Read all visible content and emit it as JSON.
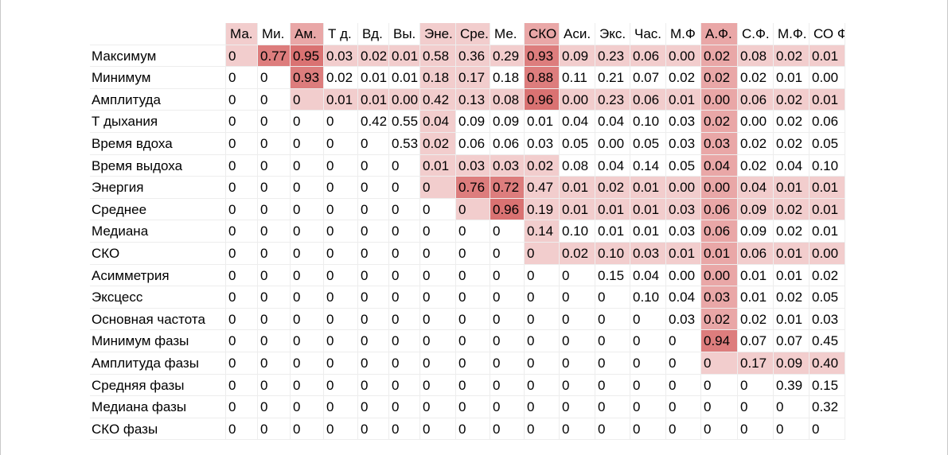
{
  "columns": [
    "Ма.",
    "Ми.",
    "Ам.",
    "Т д.",
    "Вд.",
    "Вы.",
    "Эне.",
    "Сре.",
    "Ме.",
    "СКО",
    "Аси.",
    "Экс.",
    "Час.",
    "М.Ф",
    "А.Ф.",
    "С.Ф.",
    "М.Ф.",
    "СО Ф"
  ],
  "column_highlight": [
    "#f2cdcd",
    null,
    "#e9a7a7",
    null,
    null,
    null,
    "#f2cdcd",
    "#f2cdcd",
    null,
    "#e9a7a7",
    null,
    null,
    null,
    null,
    "#e9a7a7",
    null,
    null,
    null
  ],
  "rows": [
    {
      "label": "Максимум",
      "values": [
        "0",
        "0.77",
        "0.95",
        "0.03",
        "0.02",
        "0.01",
        "0.58",
        "0.36",
        "0.29",
        "0.93",
        "0.09",
        "0.23",
        "0.06",
        "0.00",
        "0.02",
        "0.08",
        "0.02",
        "0.01"
      ],
      "fills": [
        "#f2cdcd",
        "#dd7d7d",
        "#da7272",
        "#f2cdcd",
        "#f2cdcd",
        "#f2cdcd",
        "#f2cdcd",
        "#f2cdcd",
        "#f2cdcd",
        "#dd7d7d",
        "#f2cdcd",
        "#f2cdcd",
        "#f2cdcd",
        "#f2cdcd",
        "#e9a7a7",
        "#f2cdcd",
        "#f2cdcd",
        "#f2cdcd"
      ]
    },
    {
      "label": "Минимум",
      "values": [
        "0",
        "0",
        "0.93",
        "0.02",
        "0.01",
        "0.01",
        "0.18",
        "0.17",
        "0.18",
        "0.88",
        "0.11",
        "0.21",
        "0.07",
        "0.02",
        "0.02",
        "0.02",
        "0.01",
        "0.00"
      ],
      "fills": [
        null,
        null,
        "#dd7d7d",
        null,
        null,
        null,
        "#f2cdcd",
        "#f2cdcd",
        null,
        "#dd7d7d",
        null,
        null,
        null,
        null,
        "#e9a7a7",
        null,
        null,
        null
      ]
    },
    {
      "label": "Амплитуда",
      "values": [
        "0",
        "0",
        "0",
        "0.01",
        "0.01",
        "0.00",
        "0.42",
        "0.13",
        "0.08",
        "0.96",
        "0.00",
        "0.23",
        "0.06",
        "0.01",
        "0.00",
        "0.06",
        "0.02",
        "0.01"
      ],
      "fills": [
        null,
        null,
        "#f2cdcd",
        "#f2cdcd",
        "#f2cdcd",
        "#f2cdcd",
        "#f2cdcd",
        "#f2cdcd",
        "#f2cdcd",
        "#da7272",
        "#f2cdcd",
        "#f2cdcd",
        "#f2cdcd",
        "#f2cdcd",
        "#e9a7a7",
        "#f2cdcd",
        "#f2cdcd",
        "#f2cdcd"
      ]
    },
    {
      "label": "Т дыхания",
      "values": [
        "0",
        "0",
        "0",
        "0",
        "0.42",
        "0.55",
        "0.04",
        "0.09",
        "0.09",
        "0.01",
        "0.04",
        "0.04",
        "0.10",
        "0.03",
        "0.02",
        "0.00",
        "0.02",
        "0.06"
      ],
      "fills": [
        null,
        null,
        null,
        null,
        null,
        null,
        "#f2cdcd",
        null,
        null,
        null,
        null,
        null,
        null,
        null,
        "#e9a7a7",
        null,
        null,
        null
      ]
    },
    {
      "label": "Время вдоха",
      "values": [
        "0",
        "0",
        "0",
        "0",
        "0",
        "0.53",
        "0.02",
        "0.06",
        "0.06",
        "0.03",
        "0.05",
        "0.00",
        "0.05",
        "0.03",
        "0.03",
        "0.02",
        "0.02",
        "0.05"
      ],
      "fills": [
        null,
        null,
        null,
        null,
        null,
        null,
        "#f2cdcd",
        null,
        null,
        null,
        null,
        null,
        null,
        null,
        "#e9a7a7",
        null,
        null,
        null
      ]
    },
    {
      "label": "Время выдоха",
      "values": [
        "0",
        "0",
        "0",
        "0",
        "0",
        "0",
        "0.01",
        "0.03",
        "0.03",
        "0.02",
        "0.08",
        "0.04",
        "0.14",
        "0.05",
        "0.04",
        "0.02",
        "0.04",
        "0.10"
      ],
      "fills": [
        null,
        null,
        null,
        null,
        null,
        null,
        "#f2cdcd",
        "#f2cdcd",
        "#f2cdcd",
        "#f2cdcd",
        null,
        null,
        null,
        null,
        "#e9a7a7",
        null,
        null,
        null
      ]
    },
    {
      "label": "Энергия",
      "values": [
        "0",
        "0",
        "0",
        "0",
        "0",
        "0",
        "0",
        "0.76",
        "0.72",
        "0.47",
        "0.01",
        "0.02",
        "0.01",
        "0.00",
        "0.00",
        "0.04",
        "0.01",
        "0.01"
      ],
      "fills": [
        null,
        null,
        null,
        null,
        null,
        null,
        "#f2cdcd",
        "#dd7d7d",
        "#dd7d7d",
        "#f2cdcd",
        "#f2cdcd",
        "#f2cdcd",
        "#f2cdcd",
        "#f2cdcd",
        "#e9a7a7",
        "#f2cdcd",
        "#f2cdcd",
        "#f2cdcd"
      ]
    },
    {
      "label": "Среднее",
      "values": [
        "0",
        "0",
        "0",
        "0",
        "0",
        "0",
        "0",
        "0",
        "0.96",
        "0.19",
        "0.01",
        "0.01",
        "0.01",
        "0.03",
        "0.06",
        "0.09",
        "0.02",
        "0.01"
      ],
      "fills": [
        null,
        null,
        null,
        null,
        null,
        null,
        null,
        "#f2cdcd",
        "#da7272",
        "#f2cdcd",
        "#f2cdcd",
        "#f2cdcd",
        "#f2cdcd",
        "#f2cdcd",
        "#e9a7a7",
        "#f2cdcd",
        "#f2cdcd",
        "#f2cdcd"
      ]
    },
    {
      "label": "Медиана",
      "values": [
        "0",
        "0",
        "0",
        "0",
        "0",
        "0",
        "0",
        "0",
        "0",
        "0.14",
        "0.10",
        "0.01",
        "0.01",
        "0.03",
        "0.06",
        "0.09",
        "0.02",
        "0.01"
      ],
      "fills": [
        null,
        null,
        null,
        null,
        null,
        null,
        null,
        null,
        null,
        "#f2cdcd",
        null,
        null,
        null,
        null,
        "#e9a7a7",
        null,
        null,
        null
      ]
    },
    {
      "label": "СКО",
      "values": [
        "0",
        "0",
        "0",
        "0",
        "0",
        "0",
        "0",
        "0",
        "0",
        "0",
        "0.02",
        "0.10",
        "0.03",
        "0.01",
        "0.01",
        "0.06",
        "0.01",
        "0.00"
      ],
      "fills": [
        null,
        null,
        null,
        null,
        null,
        null,
        null,
        null,
        null,
        "#f2cdcd",
        "#f2cdcd",
        "#f2cdcd",
        "#f2cdcd",
        "#f2cdcd",
        "#e9a7a7",
        "#f2cdcd",
        "#f2cdcd",
        "#f2cdcd"
      ]
    },
    {
      "label": "Асимметрия",
      "values": [
        "0",
        "0",
        "0",
        "0",
        "0",
        "0",
        "0",
        "0",
        "0",
        "0",
        "0",
        "0.15",
        "0.04",
        "0.00",
        "0.00",
        "0.01",
        "0.01",
        "0.02"
      ],
      "fills": [
        null,
        null,
        null,
        null,
        null,
        null,
        null,
        null,
        null,
        null,
        null,
        null,
        null,
        null,
        "#e9a7a7",
        null,
        null,
        null
      ]
    },
    {
      "label": "Эксцесс",
      "values": [
        "0",
        "0",
        "0",
        "0",
        "0",
        "0",
        "0",
        "0",
        "0",
        "0",
        "0",
        "0",
        "0.10",
        "0.04",
        "0.03",
        "0.01",
        "0.02",
        "0.05"
      ],
      "fills": [
        null,
        null,
        null,
        null,
        null,
        null,
        null,
        null,
        null,
        null,
        null,
        null,
        null,
        null,
        "#e9a7a7",
        null,
        null,
        null
      ]
    },
    {
      "label": "Основная частота",
      "values": [
        "0",
        "0",
        "0",
        "0",
        "0",
        "0",
        "0",
        "0",
        "0",
        "0",
        "0",
        "0",
        "0",
        "0.03",
        "0.02",
        "0.02",
        "0.01",
        "0.03"
      ],
      "fills": [
        null,
        null,
        null,
        null,
        null,
        null,
        null,
        null,
        null,
        null,
        null,
        null,
        null,
        null,
        "#e9a7a7",
        null,
        null,
        null
      ]
    },
    {
      "label": "Минимум фазы",
      "values": [
        "0",
        "0",
        "0",
        "0",
        "0",
        "0",
        "0",
        "0",
        "0",
        "0",
        "0",
        "0",
        "0",
        "0",
        "0.94",
        "0.07",
        "0.07",
        "0.45"
      ],
      "fills": [
        null,
        null,
        null,
        null,
        null,
        null,
        null,
        null,
        null,
        null,
        null,
        null,
        null,
        null,
        "#dd7d7d",
        null,
        null,
        null
      ]
    },
    {
      "label": "Амплитуда фазы",
      "values": [
        "0",
        "0",
        "0",
        "0",
        "0",
        "0",
        "0",
        "0",
        "0",
        "0",
        "0",
        "0",
        "0",
        "0",
        "0",
        "0.17",
        "0.09",
        "0.40"
      ],
      "fills": [
        null,
        null,
        null,
        null,
        null,
        null,
        null,
        null,
        null,
        null,
        null,
        null,
        null,
        null,
        "#f2cdcd",
        "#f2cdcd",
        "#f2cdcd",
        "#f2cdcd"
      ]
    },
    {
      "label": "Средняя фазы",
      "values": [
        "0",
        "0",
        "0",
        "0",
        "0",
        "0",
        "0",
        "0",
        "0",
        "0",
        "0",
        "0",
        "0",
        "0",
        "0",
        "0",
        "0.39",
        "0.15"
      ],
      "fills": [
        null,
        null,
        null,
        null,
        null,
        null,
        null,
        null,
        null,
        null,
        null,
        null,
        null,
        null,
        null,
        null,
        null,
        null
      ]
    },
    {
      "label": "Медиана фазы",
      "values": [
        "0",
        "0",
        "0",
        "0",
        "0",
        "0",
        "0",
        "0",
        "0",
        "0",
        "0",
        "0",
        "0",
        "0",
        "0",
        "0",
        "0",
        "0.32"
      ],
      "fills": [
        null,
        null,
        null,
        null,
        null,
        null,
        null,
        null,
        null,
        null,
        null,
        null,
        null,
        null,
        null,
        null,
        null,
        null
      ]
    },
    {
      "label": "СКО фазы",
      "values": [
        "0",
        "0",
        "0",
        "0",
        "0",
        "0",
        "0",
        "0",
        "0",
        "0",
        "0",
        "0",
        "0",
        "0",
        "0",
        "0",
        "0",
        "0"
      ],
      "fills": [
        null,
        null,
        null,
        null,
        null,
        null,
        null,
        null,
        null,
        null,
        null,
        null,
        null,
        null,
        null,
        null,
        null,
        null
      ]
    }
  ]
}
